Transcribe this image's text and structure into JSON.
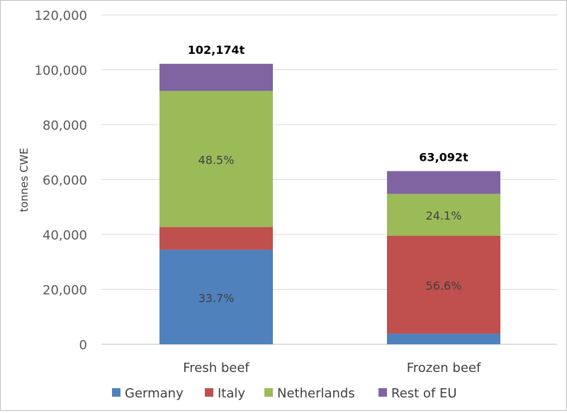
{
  "chart_data": {
    "type": "bar",
    "stacked": true,
    "title": "",
    "xlabel": "",
    "ylabel": "tonnes CWE",
    "ylim": [
      0,
      120000
    ],
    "yticks": [
      0,
      20000,
      40000,
      60000,
      80000,
      100000,
      120000
    ],
    "ytick_labels": [
      "0",
      "20,000",
      "40,000",
      "60,000",
      "80,000",
      "100,000",
      "120,000"
    ],
    "grid": true,
    "legend_position": "bottom",
    "categories": [
      "Fresh beef",
      "Frozen beef"
    ],
    "totals": [
      "102,174t",
      "63,092t"
    ],
    "series": [
      {
        "name": "Germany",
        "color": "#4F81BD",
        "values": [
          34433,
          3860
        ],
        "labels": [
          "33.7%",
          ""
        ]
      },
      {
        "name": "Italy",
        "color": "#C0504D",
        "values": [
          8300,
          35710
        ],
        "labels": [
          "",
          "56.6%"
        ]
      },
      {
        "name": "Netherlands",
        "color": "#9BBB59",
        "values": [
          49554,
          15205
        ],
        "labels": [
          "48.5%",
          "24.1%"
        ]
      },
      {
        "name": "Rest of EU",
        "color": "#8064A2",
        "values": [
          9887,
          8317
        ],
        "labels": [
          "",
          ""
        ]
      }
    ]
  }
}
